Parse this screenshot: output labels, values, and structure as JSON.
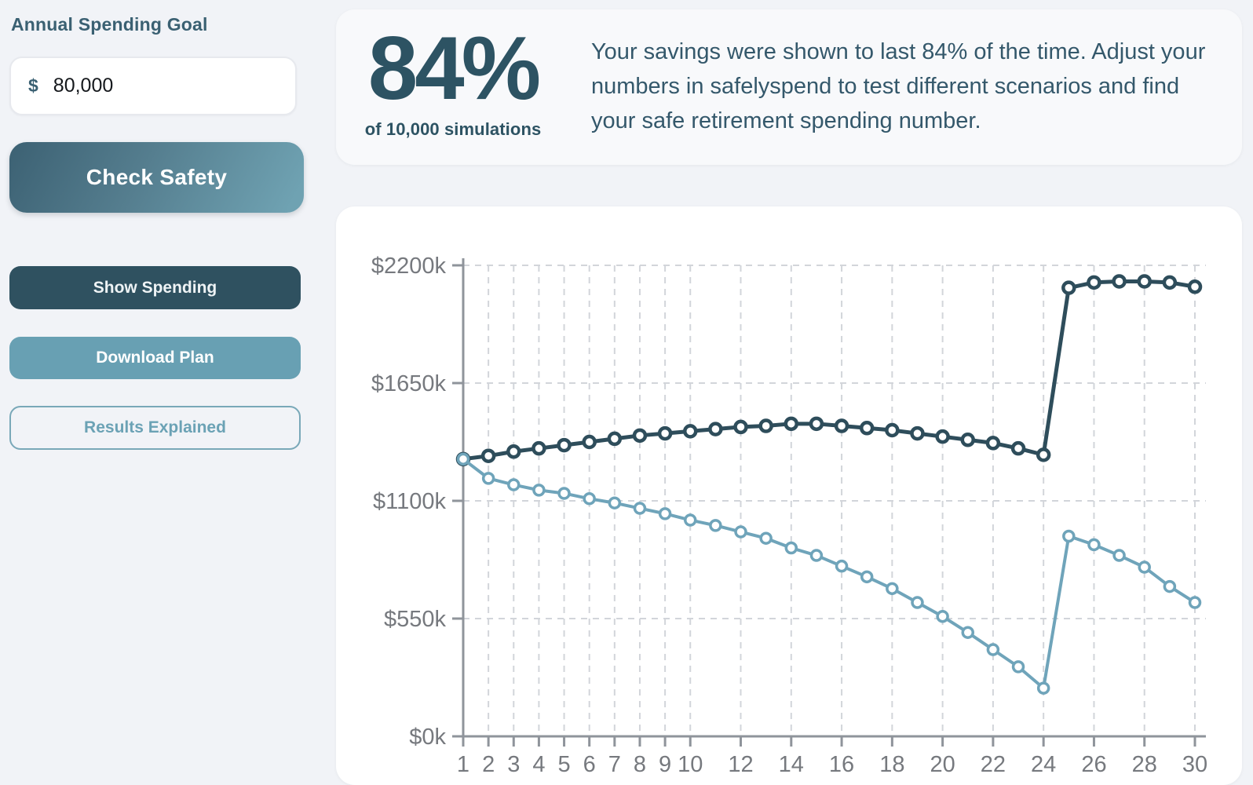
{
  "sidebar": {
    "heading": "Annual Spending Goal",
    "input": {
      "prefix": "$",
      "value": "80,000"
    },
    "buttons": {
      "check_safety": "Check Safety",
      "show_spending": "Show Spending",
      "download_plan": "Download Plan",
      "results_explained": "Results Explained"
    }
  },
  "summary": {
    "percent": "84%",
    "subtext": "of 10,000 simulations",
    "description": "Your savings were shown to last 84% of the time. Adjust your numbers in safelyspend to test different scenarios and find your safe retirement spending number."
  },
  "colors": {
    "page_background": "#f1f3f7",
    "panel_background": "#f8f9fb",
    "chart_background": "#ffffff",
    "accent_dark_teal": "#2f5160",
    "accent_light_blue": "#68a0b3",
    "text_teal": "#34586b",
    "axis_gray": "#8f949b",
    "grid_gray": "#d2d5da",
    "tick_text_gray": "#76797e"
  },
  "chart_data": {
    "type": "line",
    "x": [
      1,
      2,
      3,
      4,
      5,
      6,
      7,
      8,
      9,
      10,
      11,
      12,
      13,
      14,
      15,
      16,
      17,
      18,
      19,
      20,
      21,
      22,
      23,
      24,
      25,
      26,
      27,
      28,
      29,
      30
    ],
    "series": [
      {
        "name": "dark-teal-balance-series",
        "color": "#2e4d5b",
        "line_width": 5,
        "marker_radius": 7,
        "marker_stroke": 4.5,
        "values": [
          1295,
          1310,
          1330,
          1345,
          1360,
          1375,
          1390,
          1405,
          1415,
          1425,
          1435,
          1445,
          1450,
          1460,
          1460,
          1450,
          1440,
          1430,
          1415,
          1400,
          1385,
          1370,
          1345,
          1315,
          2095,
          2120,
          2125,
          2125,
          2120,
          2100
        ]
      },
      {
        "name": "light-blue-balance-series",
        "color": "#6fa4ba",
        "line_width": 4,
        "marker_radius": 6.5,
        "marker_stroke": 3.5,
        "values": [
          1295,
          1205,
          1175,
          1150,
          1135,
          1110,
          1090,
          1065,
          1040,
          1010,
          985,
          955,
          925,
          880,
          845,
          795,
          745,
          690,
          625,
          560,
          485,
          405,
          325,
          225,
          935,
          895,
          845,
          790,
          700,
          625
        ]
      }
    ],
    "xticks": [
      1,
      2,
      3,
      4,
      5,
      6,
      7,
      8,
      9,
      10,
      12,
      14,
      16,
      18,
      20,
      22,
      24,
      26,
      28,
      30
    ],
    "yticks": [
      {
        "value": 0,
        "label": "$0k"
      },
      {
        "value": 550,
        "label": "$550k"
      },
      {
        "value": 1100,
        "label": "$1100k"
      },
      {
        "value": 1650,
        "label": "$1650k"
      },
      {
        "value": 2200,
        "label": "$2200k"
      }
    ],
    "ylim": [
      0,
      2200
    ],
    "xlim": [
      1,
      30
    ],
    "title": "",
    "xlabel": "",
    "ylabel": "",
    "grid": {
      "horizontal": true,
      "vertical": true,
      "style": "dashed"
    },
    "legend": "none",
    "units": "thousands of dollars (k)"
  }
}
